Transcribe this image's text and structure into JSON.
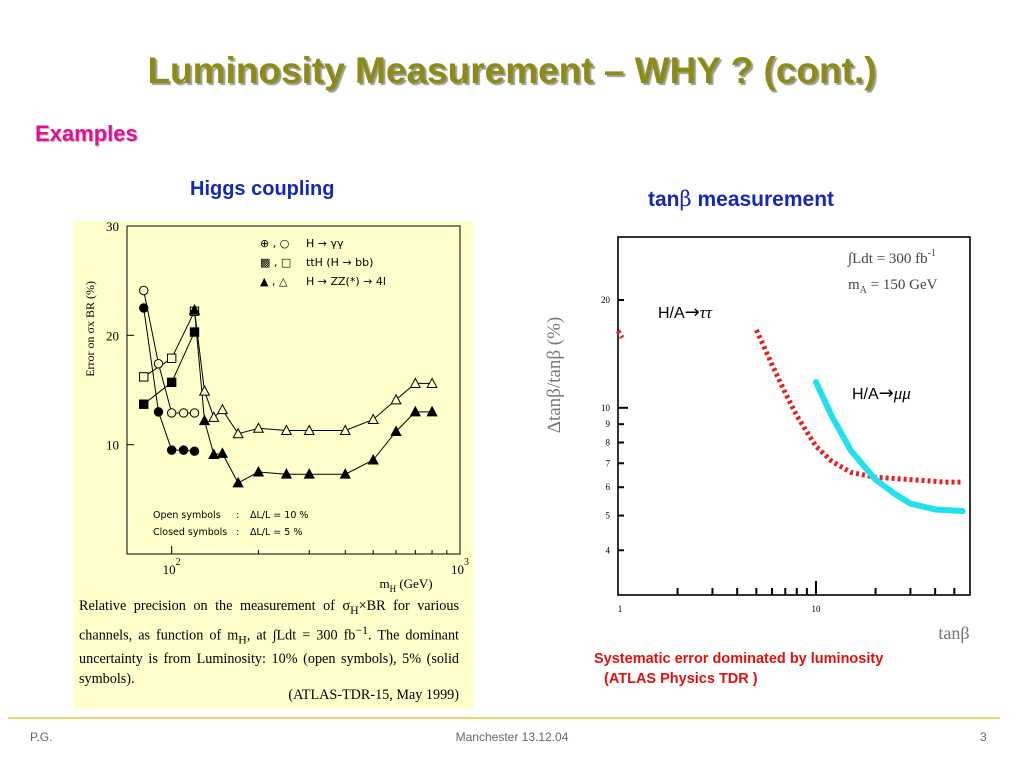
{
  "slide": {
    "title": "Luminosity Measurement – WHY ? (cont.)",
    "subtitle": "Examples",
    "left_heading": "Higgs coupling",
    "right_heading_prefix": "tan",
    "right_heading_beta": "β",
    "right_heading_suffix": " measurement",
    "caption_lines": [
      "Relative precision on the measurement of σ",
      "H",
      "×BR for various channels, as function of m",
      "H",
      ", at ∫Ldt = 300 fb",
      "−1",
      ". The dominant uncertainty is from Luminosity: 10% (open symbols), 5% (solid symbols)."
    ],
    "reference": "(ATLAS-TDR-15, May 1999)",
    "systematic_line1": "Systematic error dominated by luminosity",
    "systematic_line2": "(ATLAS Physics TDR )",
    "footer_left": "P.G.",
    "footer_center": "Manchester 13.12.04",
    "footer_right": "3",
    "colors": {
      "title": "#8c8c14",
      "subtitle": "#e0109a",
      "heading": "#1428b8",
      "panel": "#ffffcc",
      "note": "#e01010"
    }
  },
  "chart_data": [
    {
      "type": "scatter",
      "ylabel": "Error on σx BR (%)",
      "xlabel": "m_H (GeV)",
      "x_scale": "log",
      "x_ticks": [
        {
          "value": 100,
          "label": "10",
          "exp": "2"
        },
        {
          "value": 1000,
          "label": "10",
          "exp": "3"
        }
      ],
      "y_ticks": [
        10,
        20,
        30
      ],
      "xlim": [
        70,
        1000
      ],
      "ylim": [
        0,
        30
      ],
      "legend_entries": [
        {
          "symbols": "⊕ , ○",
          "text": "H → γγ"
        },
        {
          "symbols": "▩ , □",
          "text": "ttH (H → bb)"
        },
        {
          "symbols": "▲ , △",
          "text": "H → ZZ(*) → 4l"
        }
      ],
      "annotations": [
        {
          "label": "Open symbols",
          "text": "ΔL/L = 10 %"
        },
        {
          "label": "Closed symbols",
          "text": "ΔL/L = 5 %"
        }
      ],
      "series": [
        {
          "channel": "H→γγ",
          "filled": false,
          "marker": "circle",
          "x": [
            80,
            90,
            100,
            110,
            120
          ],
          "y": [
            24.1,
            17.4,
            12.9,
            12.9,
            12.9
          ]
        },
        {
          "channel": "H→γγ",
          "filled": true,
          "marker": "circle",
          "x": [
            80,
            90,
            100,
            110,
            120
          ],
          "y": [
            22.5,
            13.0,
            9.5,
            9.5,
            9.4
          ]
        },
        {
          "channel": "ttH (H→bb)",
          "filled": false,
          "marker": "square",
          "x": [
            80,
            100,
            120
          ],
          "y": [
            16.2,
            17.9,
            22.2
          ]
        },
        {
          "channel": "ttH (H→bb)",
          "filled": true,
          "marker": "square",
          "x": [
            80,
            100,
            120
          ],
          "y": [
            13.7,
            15.7,
            20.3
          ]
        },
        {
          "channel": "H→ZZ(*)→4l",
          "filled": false,
          "marker": "triangle",
          "x": [
            120,
            130,
            140,
            150,
            170,
            200,
            250,
            300,
            400,
            500,
            600,
            700,
            800
          ],
          "y": [
            22.3,
            14.9,
            12.5,
            13.2,
            11.0,
            11.5,
            11.3,
            11.3,
            11.3,
            12.3,
            14.1,
            15.6,
            15.6
          ]
        },
        {
          "channel": "H→ZZ(*)→4l",
          "filled": true,
          "marker": "triangle",
          "x": [
            120,
            130,
            140,
            150,
            170,
            200,
            250,
            300,
            400,
            500,
            600,
            700,
            800
          ],
          "y": [
            22.3,
            12.2,
            9.1,
            9.2,
            6.5,
            7.5,
            7.3,
            7.3,
            7.3,
            8.6,
            11.2,
            13.0,
            13.0
          ]
        }
      ]
    },
    {
      "type": "line",
      "ylabel": "Δtanβ/tanβ (%)",
      "xlabel": "tanβ",
      "x_scale": "log",
      "y_scale": "log",
      "x_tick_labels": [
        "1",
        "10"
      ],
      "y_tick_labels": [
        "4",
        "5",
        "6",
        "7",
        "8",
        "9",
        "10",
        "20"
      ],
      "xlim": [
        1,
        60
      ],
      "ylim": [
        3,
        30
      ],
      "info_text": [
        "∫Ldt = 300 fb",
        "-1",
        "m",
        "A",
        " = 150 GeV"
      ],
      "series": [
        {
          "name": "H/A→ττ",
          "color": "#e62020",
          "style": "dotted",
          "x": [
            5,
            6,
            7,
            8,
            10,
            12,
            15,
            20,
            30,
            45,
            55
          ],
          "y": [
            16.5,
            13.2,
            11.0,
            9.5,
            7.8,
            7.1,
            6.6,
            6.4,
            6.3,
            6.2,
            6.2
          ]
        },
        {
          "name": "H/A→μμ",
          "color": "#22e0ee",
          "style": "solid",
          "x": [
            10,
            12,
            15,
            20,
            25,
            30,
            40,
            55
          ],
          "y": [
            11.8,
            9.5,
            7.6,
            6.3,
            5.75,
            5.4,
            5.2,
            5.15
          ]
        },
        {
          "color": "#e62020",
          "style": "dotted",
          "x": [
            1.0,
            1.05
          ],
          "y": [
            16.4,
            15.7
          ]
        }
      ]
    }
  ]
}
